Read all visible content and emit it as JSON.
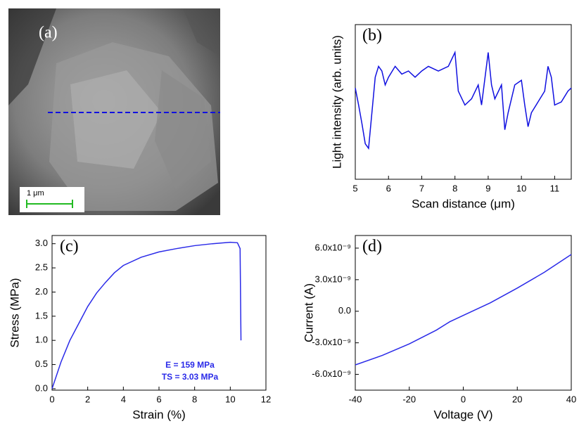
{
  "chart_data": [
    {
      "type": "image",
      "panel_label": "(a)",
      "scale_bar": "1 μm"
    },
    {
      "type": "line",
      "panel_label": "(b)",
      "xlabel": "Scan distance (μm)",
      "ylabel": "Light intensity (arb. units)",
      "color": "#1010e0",
      "x": [
        5.0,
        5.1,
        5.2,
        5.3,
        5.4,
        5.5,
        5.6,
        5.7,
        5.8,
        5.9,
        6.0,
        6.2,
        6.4,
        6.6,
        6.8,
        7.0,
        7.2,
        7.5,
        7.8,
        8.0,
        8.1,
        8.3,
        8.5,
        8.7,
        8.8,
        9.0,
        9.1,
        9.2,
        9.4,
        9.5,
        9.6,
        9.8,
        10.0,
        10.1,
        10.2,
        10.3,
        10.5,
        10.7,
        10.8,
        10.9,
        11.0,
        11.2,
        11.4,
        11.5
      ],
      "values": [
        5.9,
        4.8,
        3.6,
        2.3,
        2.0,
        4.3,
        6.6,
        7.3,
        7.0,
        6.1,
        6.6,
        7.3,
        6.8,
        7.0,
        6.6,
        7.0,
        7.3,
        7.0,
        7.3,
        8.2,
        5.7,
        4.8,
        5.2,
        6.1,
        4.8,
        8.2,
        6.1,
        5.2,
        6.1,
        3.2,
        4.3,
        6.1,
        6.4,
        4.8,
        3.4,
        4.3,
        5.0,
        5.7,
        7.3,
        6.6,
        4.8,
        5.0,
        5.7,
        5.9
      ],
      "xlim": [
        5,
        11.5
      ],
      "xticks": [
        5,
        6,
        7,
        8,
        9,
        10,
        11
      ],
      "ylim": [
        0,
        10
      ]
    },
    {
      "type": "line",
      "panel_label": "(c)",
      "xlabel": "Strain (%)",
      "ylabel": "Stress (MPa)",
      "color": "#2a2ae8",
      "x": [
        0,
        0.5,
        1,
        1.5,
        2,
        2.5,
        3,
        3.5,
        4,
        5,
        6,
        7,
        8,
        9,
        10,
        10.4,
        10.55,
        10.6
      ],
      "values": [
        0,
        0.55,
        1.0,
        1.35,
        1.7,
        1.98,
        2.2,
        2.4,
        2.55,
        2.72,
        2.83,
        2.9,
        2.96,
        3.0,
        3.03,
        3.02,
        2.9,
        1.0
      ],
      "xlim": [
        0,
        12
      ],
      "xticks": [
        0,
        2,
        4,
        6,
        8,
        10,
        12
      ],
      "ylim": [
        -0.03,
        3.17
      ],
      "yticks": [
        {
          "value": 0,
          "label": "0.0"
        },
        0.5,
        {
          "value": 1,
          "label": "1.0"
        },
        1.5,
        {
          "value": 2,
          "label": "2.0"
        },
        2.5,
        {
          "value": 3,
          "label": "3.0"
        }
      ],
      "annotations": [
        "E = 159 MPa",
        "TS = 3.03 MPa"
      ]
    },
    {
      "type": "line",
      "panel_label": "(d)",
      "xlabel": "Voltage (V)",
      "ylabel": "Current (A)",
      "color": "#2a2ae8",
      "x": [
        -40,
        -30,
        -20,
        -10,
        -5,
        0,
        10,
        20,
        30,
        40
      ],
      "values": [
        -5.1e-09,
        -4.2e-09,
        -3.1e-09,
        -1.8e-09,
        -1e-09,
        -4e-10,
        8e-10,
        2.2e-09,
        3.7e-09,
        5.4e-09
      ],
      "xlim": [
        -40,
        40
      ],
      "xticks": [
        -40,
        -20,
        0,
        20,
        40
      ],
      "ylim": [
        -7.5e-09,
        7.2e-09
      ],
      "yticks": [
        {
          "value": -6e-09,
          "label": "-6.0x10⁻⁹"
        },
        {
          "value": -3e-09,
          "label": "-3.0x10⁻⁹"
        },
        {
          "value": 0,
          "label": "0.0"
        },
        {
          "value": 3e-09,
          "label": "3.0x10⁻⁹"
        },
        {
          "value": 6e-09,
          "label": "6.0x10⁻⁹"
        }
      ]
    }
  ]
}
